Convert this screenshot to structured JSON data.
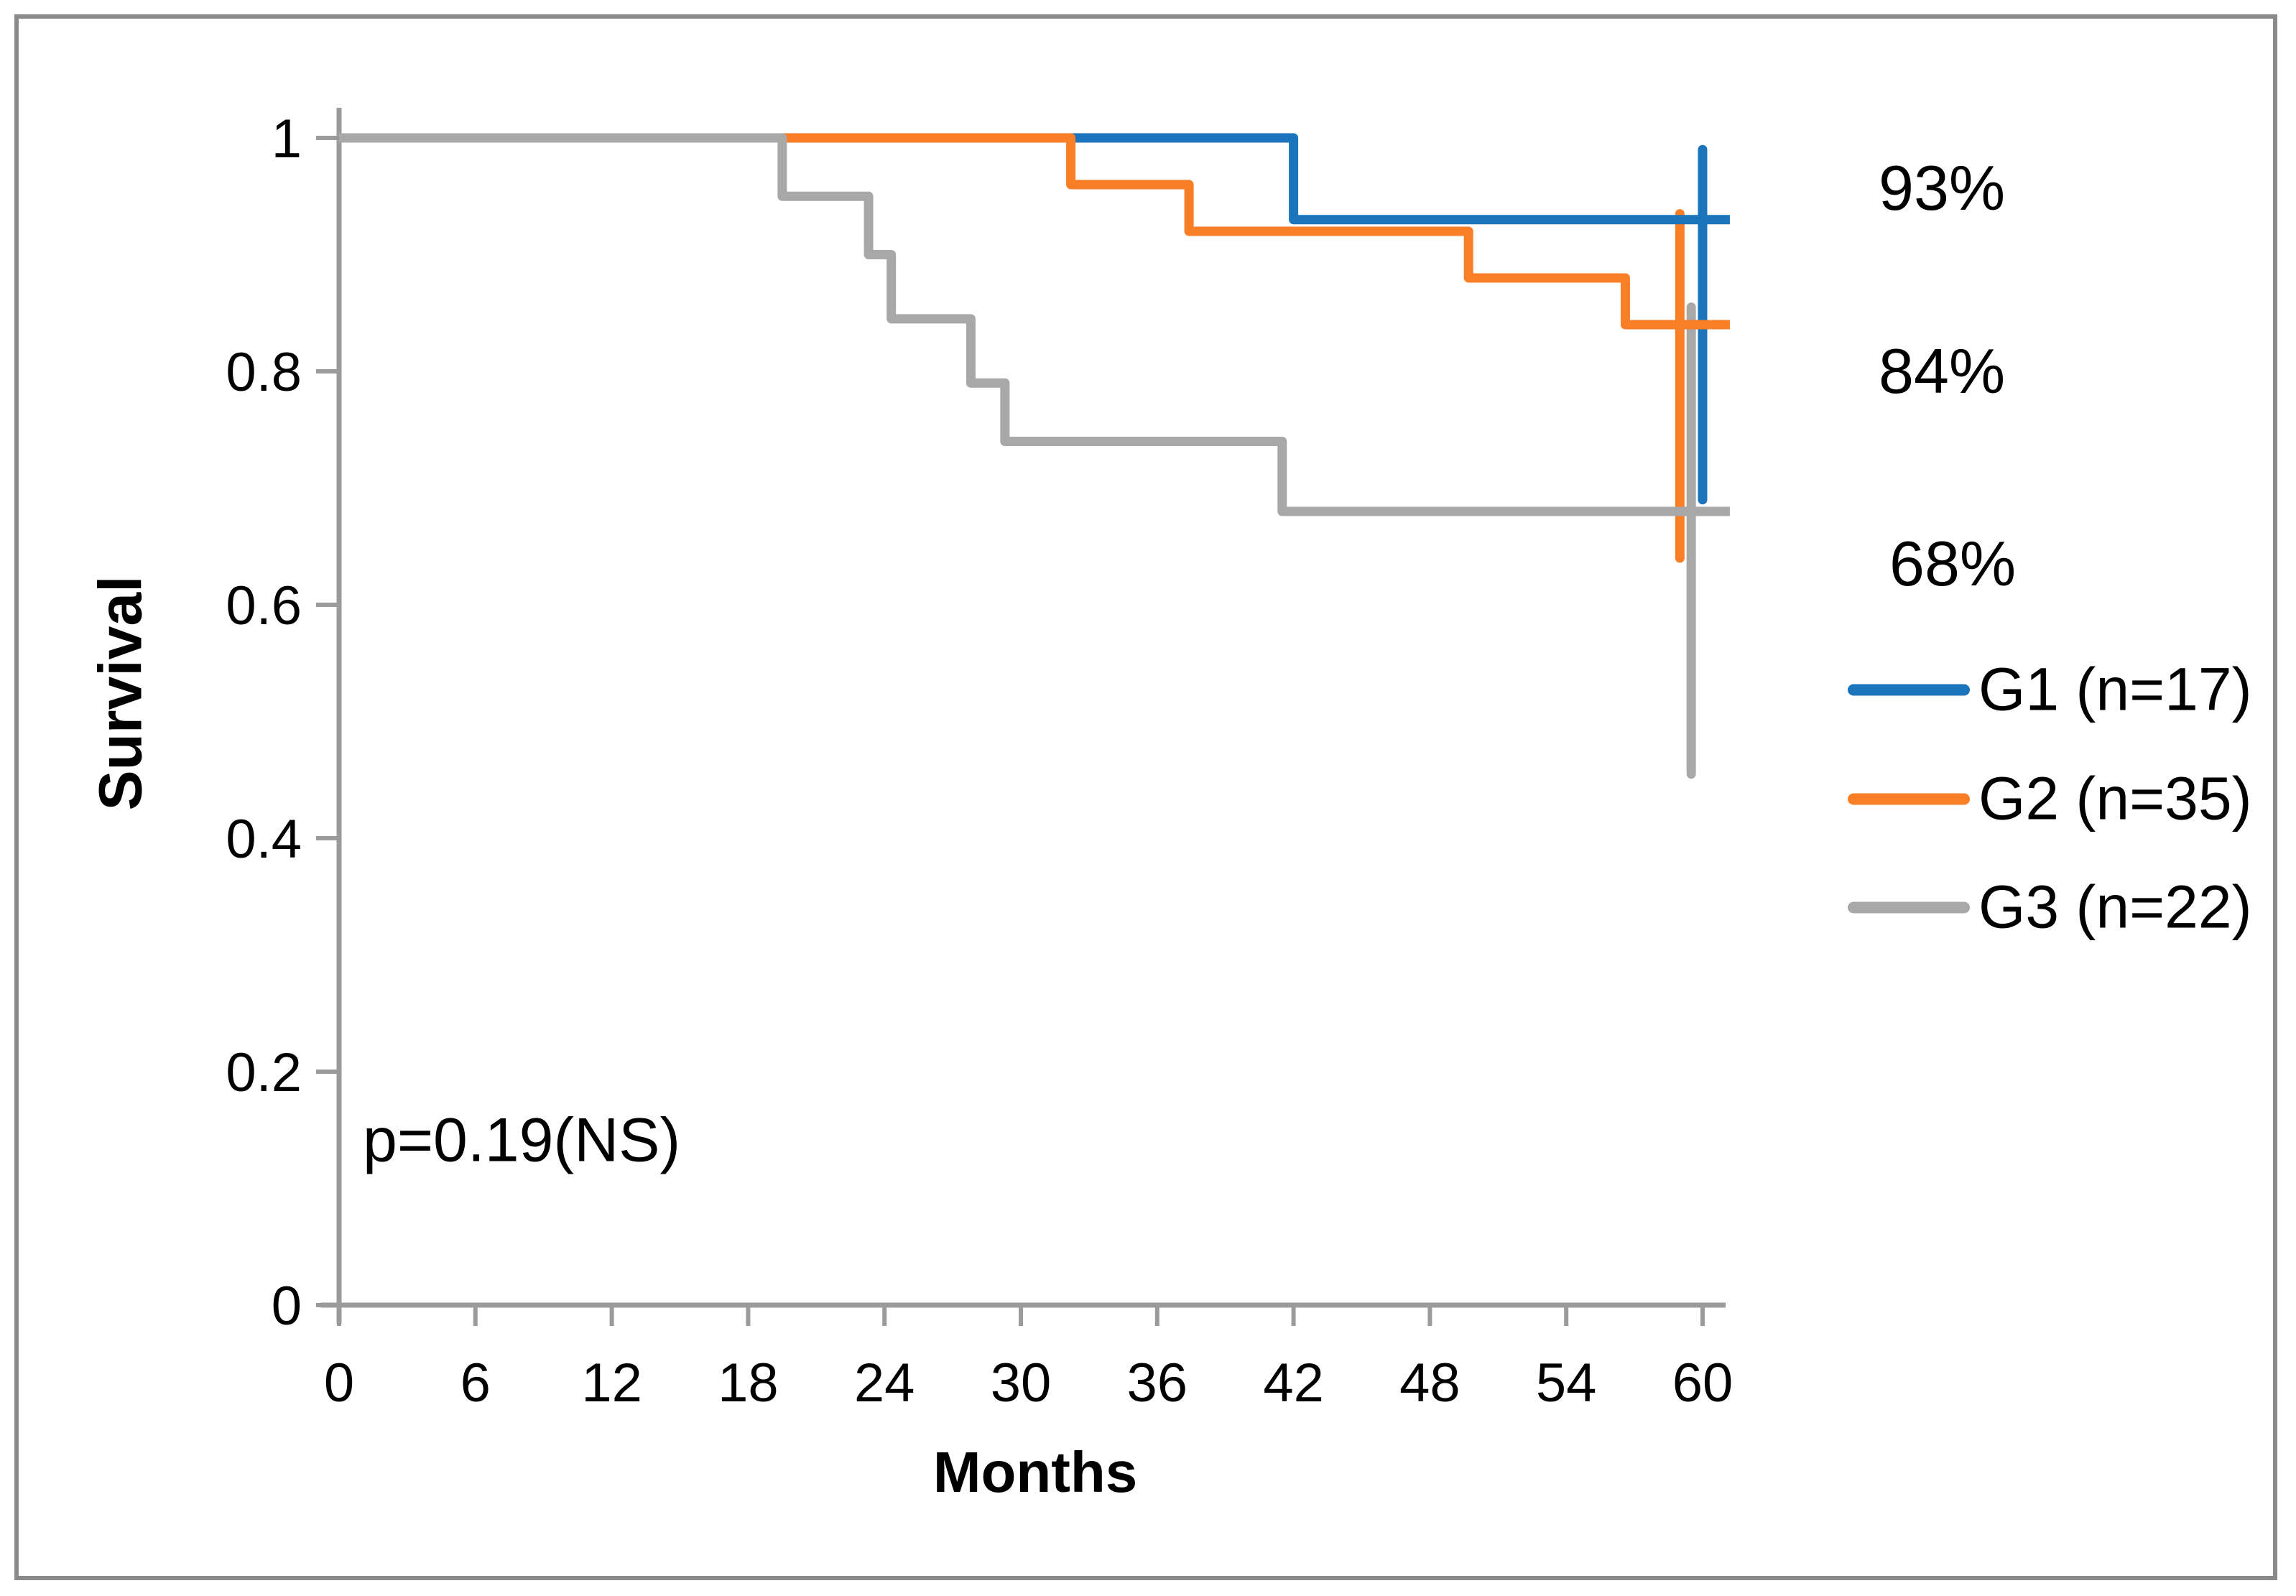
{
  "figure": {
    "background": "#FFFFFF",
    "border_color": "#8A8A8A"
  },
  "chart_data": {
    "type": "line",
    "subtype": "kaplan-meier-step",
    "title": "",
    "xlabel": "Months",
    "ylabel": "Survival",
    "xlim": [
      0,
      61.2
    ],
    "ylim": [
      0,
      1
    ],
    "xticks": [
      0,
      6,
      12,
      18,
      24,
      30,
      36,
      42,
      48,
      54,
      60
    ],
    "yticks": [
      0,
      0.2,
      0.4,
      0.6,
      0.8,
      1
    ],
    "ytick_labels": [
      "0",
      "0.2",
      "0.4",
      "0.6",
      "0.8",
      "1"
    ],
    "grid": false,
    "legend_position": "right",
    "p_value_text": "p=0.19(NS)",
    "axis_color": "#9B9B9B",
    "series": [
      {
        "name": "G1 (n=17)",
        "color": "#1B75BC",
        "end_label": "93%",
        "end_month": 61.2,
        "steps": [
          [
            0,
            1.0
          ],
          [
            42,
            0.93
          ]
        ],
        "ci_bar": {
          "month": 60.0,
          "from": 0.99,
          "to": 0.69
        }
      },
      {
        "name": "G2 (n=35)",
        "color": "#F97E26",
        "end_label": "84%",
        "end_month": 61.2,
        "steps": [
          [
            0,
            1.0
          ],
          [
            32.2,
            0.96
          ],
          [
            37.4,
            0.92
          ],
          [
            49.7,
            0.88
          ],
          [
            56.6,
            0.84
          ]
        ],
        "ci_bar": {
          "month": 59.0,
          "from": 0.935,
          "to": 0.64
        }
      },
      {
        "name": "G3 (n=22)",
        "color": "#A8A8A8",
        "end_label": "68%",
        "end_month": 61.2,
        "steps": [
          [
            0,
            1.0
          ],
          [
            19.5,
            0.95
          ],
          [
            23.3,
            0.9
          ],
          [
            24.3,
            0.845
          ],
          [
            27.8,
            0.79
          ],
          [
            29.3,
            0.74
          ],
          [
            41.5,
            0.68
          ]
        ],
        "ci_bar": {
          "month": 59.5,
          "from": 0.855,
          "to": 0.455
        }
      }
    ]
  }
}
